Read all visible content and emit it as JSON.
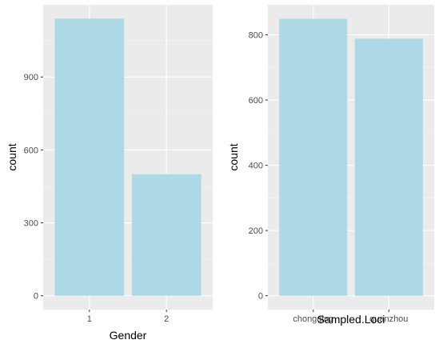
{
  "colors": {
    "panel_background": "#ebebeb",
    "major_grid": "#ffffff",
    "minor_grid": "#f5f5f5",
    "bar_fill": "#add8e6",
    "tick_text": "#4d4d4d",
    "title_text": "#000000"
  },
  "chart_data": [
    {
      "type": "bar",
      "xlabel": "Gender",
      "ylabel": "count",
      "categories": [
        "1",
        "2"
      ],
      "values": [
        1140,
        500
      ],
      "ylim": [
        -57,
        1197
      ],
      "yticks": [
        0,
        300,
        600,
        900
      ],
      "ytick_labels": [
        "0",
        "300",
        "600",
        "900"
      ],
      "grid": true
    },
    {
      "type": "bar",
      "xlabel": "Sampled.Loci",
      "ylabel": "count",
      "categories": [
        "chongqing",
        "quanzhou"
      ],
      "values": [
        849,
        788
      ],
      "ylim": [
        -42.5,
        892
      ],
      "yticks": [
        0,
        200,
        400,
        600,
        800
      ],
      "ytick_labels": [
        "0",
        "200",
        "400",
        "600",
        "800"
      ],
      "grid": true
    }
  ]
}
